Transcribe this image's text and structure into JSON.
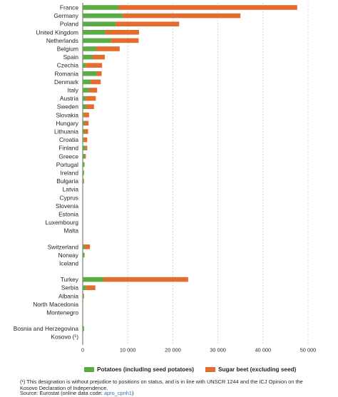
{
  "chart_data": {
    "type": "bar",
    "orientation": "horizontal",
    "stacked": true,
    "xlim": [
      0,
      50000
    ],
    "xticks": [
      "0",
      "10 000",
      "20 000",
      "30 000",
      "40 000",
      "50 000"
    ],
    "xtick_values": [
      0,
      10000,
      20000,
      30000,
      40000,
      50000
    ],
    "grid": "vertical-dashed",
    "groups": [
      [
        "France",
        "Germany",
        "Poland",
        "United Kingdom",
        "Netherlands",
        "Belgium",
        "Spain",
        "Czechia",
        "Romania",
        "Denmark",
        "Italy",
        "Austria",
        "Sweden",
        "Slovakia",
        "Hungary",
        "Lithuania",
        "Croatia",
        "Finland",
        "Greece",
        "Portugal",
        "Ireland",
        "Bulgaria",
        "Latvia",
        "Cyprus",
        "Slovenia",
        "Estonia",
        "Luxembourg",
        "Malta"
      ],
      [
        "Switzerland",
        "Norway",
        "Iceland"
      ],
      [
        "Turkey",
        "Serbia",
        "Albania",
        "North Macedonia",
        "Montenegro"
      ],
      [
        "Bosnia and Herzegovina",
        "Kosovo (¹)"
      ]
    ],
    "categories": [
      "France",
      "Germany",
      "Poland",
      "United Kingdom",
      "Netherlands",
      "Belgium",
      "Spain",
      "Czechia",
      "Romania",
      "Denmark",
      "Italy",
      "Austria",
      "Sweden",
      "Slovakia",
      "Hungary",
      "Lithuania",
      "Croatia",
      "Finland",
      "Greece",
      "Portugal",
      "Ireland",
      "Bulgaria",
      "Latvia",
      "Cyprus",
      "Slovenia",
      "Estonia",
      "Luxembourg",
      "Malta",
      "Switzerland",
      "Norway",
      "Iceland",
      "Turkey",
      "Serbia",
      "Albania",
      "North Macedonia",
      "Montenegro",
      "Bosnia and Herzegovina",
      "Kosovo (¹)"
    ],
    "series": [
      {
        "name": "Potatoes (including seed potatoes)",
        "color": "#5aac44",
        "values": [
          7900,
          8900,
          7300,
          5000,
          6300,
          3000,
          2200,
          700,
          3100,
          1800,
          1400,
          700,
          800,
          200,
          400,
          400,
          200,
          600,
          500,
          400,
          300,
          200,
          0,
          100,
          100,
          0,
          0,
          0,
          400,
          400,
          0,
          4600,
          700,
          200,
          100,
          0,
          300,
          100
        ]
      },
      {
        "name": "Sugar beet (excluding seed)",
        "color": "#e46c2e",
        "values": [
          39700,
          26100,
          14100,
          7500,
          6100,
          5200,
          2700,
          3600,
          1100,
          2200,
          1800,
          2200,
          1700,
          1200,
          900,
          800,
          800,
          400,
          200,
          0,
          0,
          100,
          0,
          0,
          0,
          0,
          0,
          0,
          1200,
          0,
          0,
          18800,
          2100,
          100,
          0,
          0,
          0,
          0
        ]
      }
    ],
    "legend_position": "bottom"
  },
  "footnote": "(¹) This designation is without prejudice to positions on status, and is in line with UNSCR 1244 and the ICJ Opinion on the Kosovo Declaration of Independence.",
  "source": {
    "prefix": "Source: Eurostat (online data code: ",
    "code": "apro_cpnh1",
    "suffix": ")"
  }
}
